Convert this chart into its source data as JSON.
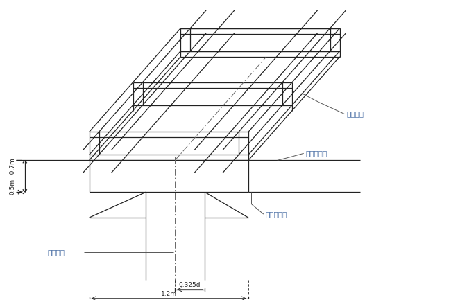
{
  "bg_color": "#ffffff",
  "line_color": "#222222",
  "fig_width": 6.5,
  "fig_height": 4.33,
  "dpi": 100,
  "label_dingwei": "定位型钉",
  "label_weihunei1": "围护内边线",
  "label_weihunei2": "围护内边线",
  "label_zhongxin": "中心轴线",
  "label_height": "0.5m−0.7m",
  "label_0325": "0.325d",
  "label_12": "1.2m",
  "annotation_color": "#4a6fa5"
}
